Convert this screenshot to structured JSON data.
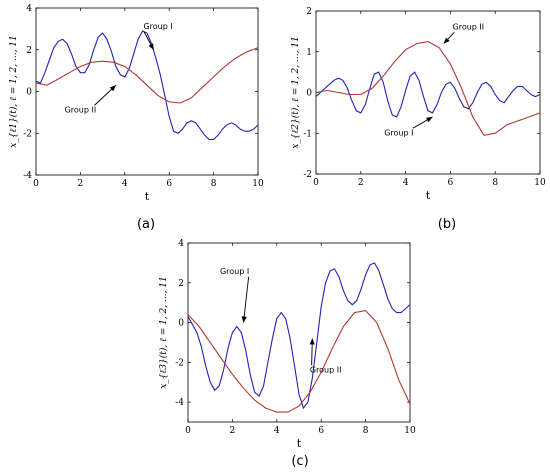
{
  "chart_data": [
    {
      "type": "line",
      "panel": "(a)",
      "panel_label": "(a)",
      "xlabel": "t",
      "ylabel": "x_{ℓ1}(t), ℓ = 1, 2, ..., 11",
      "xlim": [
        0,
        10
      ],
      "ylim": [
        -4,
        4
      ],
      "xticks": [
        0,
        2,
        4,
        6,
        8,
        10
      ],
      "yticks": [
        -4,
        -2,
        0,
        2,
        4
      ],
      "series": [
        {
          "name": "Group I",
          "color": "#2222bb",
          "x": [
            0,
            0.2,
            0.4,
            0.6,
            0.8,
            1.0,
            1.2,
            1.4,
            1.6,
            1.8,
            2.0,
            2.2,
            2.4,
            2.6,
            2.8,
            3.0,
            3.2,
            3.4,
            3.6,
            3.8,
            4.0,
            4.2,
            4.4,
            4.6,
            4.8,
            5.0,
            5.2,
            5.4,
            5.6,
            5.8,
            6.0,
            6.2,
            6.4,
            6.6,
            6.8,
            7.0,
            7.2,
            7.4,
            7.6,
            7.8,
            8.0,
            8.2,
            8.4,
            8.6,
            8.8,
            9.0,
            9.2,
            9.4,
            9.6,
            9.8,
            10.0
          ],
          "y": [
            0.5,
            0.4,
            0.9,
            1.5,
            2.1,
            2.4,
            2.5,
            2.3,
            1.8,
            1.2,
            0.9,
            0.9,
            1.3,
            2.0,
            2.6,
            2.8,
            2.5,
            1.9,
            1.2,
            0.8,
            0.7,
            1.1,
            1.8,
            2.5,
            2.9,
            2.8,
            2.3,
            1.6,
            0.8,
            -0.2,
            -1.2,
            -1.9,
            -2.0,
            -1.8,
            -1.5,
            -1.4,
            -1.5,
            -1.8,
            -2.1,
            -2.3,
            -2.3,
            -2.1,
            -1.8,
            -1.6,
            -1.5,
            -1.6,
            -1.8,
            -1.9,
            -1.9,
            -1.8,
            -1.6
          ]
        },
        {
          "name": "Group II",
          "color": "#b03a2e",
          "x": [
            0,
            0.5,
            1.0,
            1.5,
            2.0,
            2.5,
            3.0,
            3.5,
            4.0,
            4.5,
            5.0,
            5.5,
            6.0,
            6.5,
            7.0,
            7.5,
            8.0,
            8.5,
            9.0,
            9.5,
            10.0
          ],
          "y": [
            0.4,
            0.3,
            0.6,
            0.9,
            1.2,
            1.4,
            1.45,
            1.4,
            1.2,
            0.8,
            0.3,
            -0.2,
            -0.5,
            -0.55,
            -0.3,
            0.2,
            0.7,
            1.2,
            1.6,
            1.9,
            2.1
          ]
        }
      ],
      "annotations": [
        {
          "text": "Group I",
          "tx": 5.5,
          "ty": 3.0,
          "ax": 5.3,
          "ay": 2.0
        },
        {
          "text": "Group II",
          "tx": 2.0,
          "ty": -1.0,
          "ax": 3.6,
          "ay": 0.3
        }
      ]
    },
    {
      "type": "line",
      "panel": "(b)",
      "panel_label": "(b)",
      "xlabel": "t",
      "ylabel": "x_{ℓ2}(t), ℓ = 1, 2, ..., 11",
      "xlim": [
        0,
        10
      ],
      "ylim": [
        -2,
        2
      ],
      "xticks": [
        0,
        2,
        4,
        6,
        8,
        10
      ],
      "yticks": [
        -2,
        -1,
        0,
        1,
        2
      ],
      "series": [
        {
          "name": "Group I",
          "color": "#2222bb",
          "x": [
            0,
            0.2,
            0.4,
            0.6,
            0.8,
            1.0,
            1.2,
            1.4,
            1.6,
            1.8,
            2.0,
            2.2,
            2.4,
            2.6,
            2.8,
            3.0,
            3.2,
            3.4,
            3.6,
            3.8,
            4.0,
            4.2,
            4.4,
            4.6,
            4.8,
            5.0,
            5.2,
            5.4,
            5.6,
            5.8,
            6.0,
            6.2,
            6.4,
            6.6,
            6.8,
            7.0,
            7.2,
            7.4,
            7.6,
            7.8,
            8.0,
            8.2,
            8.4,
            8.6,
            8.8,
            9.0,
            9.2,
            9.4,
            9.6,
            9.8,
            10.0
          ],
          "y": [
            -0.1,
            0.0,
            0.1,
            0.2,
            0.3,
            0.35,
            0.3,
            0.1,
            -0.2,
            -0.45,
            -0.5,
            -0.3,
            0.1,
            0.45,
            0.5,
            0.25,
            -0.2,
            -0.55,
            -0.6,
            -0.35,
            0.05,
            0.4,
            0.5,
            0.3,
            -0.1,
            -0.45,
            -0.5,
            -0.3,
            0.0,
            0.2,
            0.25,
            0.1,
            -0.15,
            -0.35,
            -0.4,
            -0.25,
            0.0,
            0.2,
            0.25,
            0.15,
            -0.05,
            -0.2,
            -0.25,
            -0.1,
            0.05,
            0.15,
            0.15,
            0.05,
            -0.05,
            -0.1,
            -0.05
          ]
        },
        {
          "name": "Group II",
          "color": "#b03a2e",
          "x": [
            0,
            0.5,
            1.0,
            1.5,
            2.0,
            2.5,
            3.0,
            3.5,
            4.0,
            4.5,
            5.0,
            5.5,
            6.0,
            6.5,
            7.0,
            7.5,
            8.0,
            8.5,
            9.0,
            9.5,
            10.0
          ],
          "y": [
            0.0,
            0.05,
            0.0,
            -0.05,
            -0.05,
            0.1,
            0.4,
            0.75,
            1.05,
            1.2,
            1.25,
            1.1,
            0.7,
            0.1,
            -0.6,
            -1.05,
            -1.0,
            -0.8,
            -0.7,
            -0.6,
            -0.5
          ]
        }
      ],
      "annotations": [
        {
          "text": "Group II",
          "tx": 6.8,
          "ty": 1.55,
          "ax": 5.7,
          "ay": 1.2
        },
        {
          "text": "Group I",
          "tx": 3.7,
          "ty": -1.05,
          "ax": 5.2,
          "ay": -0.6
        }
      ]
    },
    {
      "type": "line",
      "panel": "(c)",
      "panel_label": "(c)",
      "xlabel": "t",
      "ylabel": "x_{ℓ3}(t), ℓ = 1, 2, ..., 11",
      "xlim": [
        0,
        10
      ],
      "ylim": [
        -5,
        4
      ],
      "xticks": [
        0,
        2,
        4,
        6,
        8,
        10
      ],
      "yticks": [
        -4,
        -2,
        0,
        2,
        4
      ],
      "series": [
        {
          "name": "Group I",
          "color": "#2222bb",
          "x": [
            0,
            0.2,
            0.4,
            0.6,
            0.8,
            1.0,
            1.2,
            1.4,
            1.6,
            1.8,
            2.0,
            2.2,
            2.4,
            2.6,
            2.8,
            3.0,
            3.2,
            3.4,
            3.6,
            3.8,
            4.0,
            4.2,
            4.4,
            4.6,
            4.8,
            5.0,
            5.2,
            5.4,
            5.6,
            5.8,
            6.0,
            6.2,
            6.4,
            6.6,
            6.8,
            7.0,
            7.2,
            7.4,
            7.6,
            7.8,
            8.0,
            8.2,
            8.4,
            8.6,
            8.8,
            9.0,
            9.2,
            9.4,
            9.6,
            9.8,
            10.0
          ],
          "y": [
            0.3,
            -0.1,
            -0.5,
            -1.2,
            -2.2,
            -3.0,
            -3.4,
            -3.2,
            -2.4,
            -1.3,
            -0.5,
            -0.2,
            -0.5,
            -1.4,
            -2.6,
            -3.5,
            -3.7,
            -3.2,
            -2.0,
            -0.8,
            0.2,
            0.5,
            0.2,
            -0.8,
            -2.2,
            -3.6,
            -4.3,
            -4.0,
            -2.8,
            -1.0,
            0.8,
            2.0,
            2.6,
            2.7,
            2.3,
            1.6,
            1.1,
            0.9,
            1.1,
            1.7,
            2.4,
            2.9,
            3.0,
            2.6,
            1.9,
            1.2,
            0.7,
            0.5,
            0.5,
            0.7,
            0.9
          ]
        },
        {
          "name": "Group II",
          "color": "#b03a2e",
          "x": [
            0,
            0.5,
            1.0,
            1.5,
            2.0,
            2.5,
            3.0,
            3.5,
            4.0,
            4.5,
            5.0,
            5.5,
            6.0,
            6.5,
            7.0,
            7.5,
            8.0,
            8.5,
            9.0,
            9.5,
            10.0
          ],
          "y": [
            0.4,
            -0.2,
            -1.0,
            -1.8,
            -2.6,
            -3.3,
            -3.9,
            -4.3,
            -4.5,
            -4.5,
            -4.2,
            -3.5,
            -2.5,
            -1.3,
            -0.2,
            0.5,
            0.6,
            0.0,
            -1.3,
            -2.9,
            -4.1
          ]
        }
      ],
      "annotations": [
        {
          "text": "Group I",
          "tx": 2.1,
          "ty": 2.45,
          "ax": 2.5,
          "ay": 0.0
        },
        {
          "text": "Group II",
          "tx": 6.2,
          "ty": -2.5,
          "ax": 5.6,
          "ay": -0.8
        }
      ]
    }
  ]
}
